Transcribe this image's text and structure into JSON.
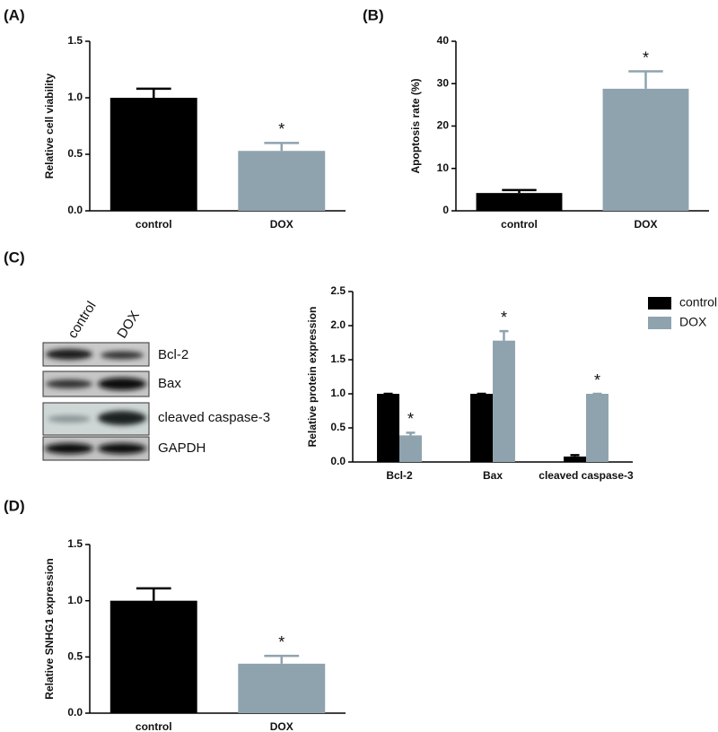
{
  "chart_data": [
    {
      "type": "bar",
      "panel_label": "(A)",
      "ylabel": "Relative cell viability",
      "categories": [
        "control",
        "DOX"
      ],
      "values": [
        1.0,
        0.53
      ],
      "errors": [
        0.08,
        0.07
      ],
      "colors": [
        "#000000",
        "#8fa3ae"
      ],
      "annotations": [
        null,
        "*"
      ],
      "ylim": [
        0,
        1.5
      ],
      "yticks": [
        {
          "value": 0,
          "label": "0.0"
        },
        0.5,
        {
          "value": 1,
          "label": "1.0"
        },
        1.5
      ]
    },
    {
      "type": "bar",
      "panel_label": "(B)",
      "ylabel": "Apoptosis rate (%)",
      "categories": [
        "control",
        "DOX"
      ],
      "values": [
        4.2,
        28.8
      ],
      "errors": [
        0.7,
        4.1
      ],
      "colors": [
        "#000000",
        "#8fa3ae"
      ],
      "annotations": [
        null,
        "*"
      ],
      "ylim": [
        0,
        40
      ],
      "yticks": [
        0,
        10,
        20,
        30,
        40
      ]
    },
    {
      "type": "grouped-bar",
      "panel_label": "(C)",
      "ylabel": "Relative protein expression",
      "categories": [
        "Bcl-2",
        "Bax",
        "cleaved caspase-3"
      ],
      "series": [
        {
          "name": "control",
          "color": "#000000",
          "values": [
            1.0,
            1.0,
            0.08
          ],
          "errors": [
            0,
            0,
            0.02
          ],
          "annotations": [
            null,
            null,
            null
          ]
        },
        {
          "name": "DOX",
          "color": "#8fa3ae",
          "values": [
            0.39,
            1.78,
            1.0
          ],
          "errors": [
            0.04,
            0.14,
            0
          ],
          "annotations": [
            "*",
            "*",
            "*"
          ]
        }
      ],
      "ylim": [
        0,
        2.5
      ],
      "yticks": [
        {
          "value": 0,
          "label": "0.0"
        },
        0.5,
        {
          "value": 1,
          "label": "1.0"
        },
        1.5,
        {
          "value": 2,
          "label": "2.0"
        },
        2.5
      ],
      "legend": "top-right"
    },
    {
      "type": "bar",
      "panel_label": "(D)",
      "ylabel": "Relative SNHG1 expression",
      "categories": [
        "control",
        "DOX"
      ],
      "values": [
        1.0,
        0.44
      ],
      "errors": [
        0.11,
        0.07
      ],
      "colors": [
        "#000000",
        "#8fa3ae"
      ],
      "annotations": [
        null,
        "*"
      ],
      "ylim": [
        0,
        1.5
      ],
      "yticks": [
        {
          "value": 0,
          "label": "0.0"
        },
        0.5,
        {
          "value": 1,
          "label": "1.0"
        },
        1.5
      ]
    }
  ],
  "blot": {
    "lanes": [
      "control",
      "DOX"
    ],
    "bands": [
      "Bcl-2",
      "Bax",
      "cleaved caspase-3",
      "GAPDH"
    ]
  }
}
